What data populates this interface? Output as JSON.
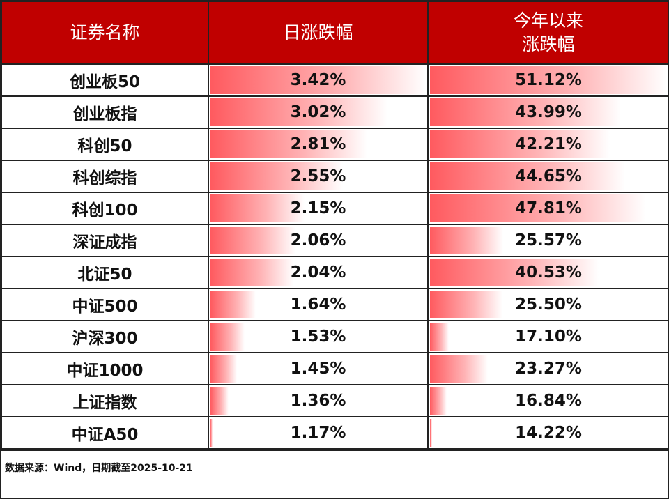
{
  "header": {
    "col_name": "证券名称",
    "col_daily": "日涨跌幅",
    "col_ytd_line1": "今年以来",
    "col_ytd_line2": "涨跌幅"
  },
  "colors": {
    "header_bg": "#c00000",
    "header_text": "#ffffff",
    "bar": "#ff5a5f",
    "border": "#222222"
  },
  "rows": [
    {
      "name": "创业板50",
      "daily": "3.42%",
      "ytd": "51.12%"
    },
    {
      "name": "创业板指",
      "daily": "3.02%",
      "ytd": "43.99%"
    },
    {
      "name": "科创50",
      "daily": "2.81%",
      "ytd": "42.21%"
    },
    {
      "name": "科创综指",
      "daily": "2.55%",
      "ytd": "44.65%"
    },
    {
      "name": "科创100",
      "daily": "2.15%",
      "ytd": "47.81%"
    },
    {
      "name": "深证成指",
      "daily": "2.06%",
      "ytd": "25.57%"
    },
    {
      "name": "北证50",
      "daily": "2.04%",
      "ytd": "40.53%"
    },
    {
      "name": "中证500",
      "daily": "1.64%",
      "ytd": "25.50%"
    },
    {
      "name": "沪深300",
      "daily": "1.53%",
      "ytd": "17.10%"
    },
    {
      "name": "中证1000",
      "daily": "1.45%",
      "ytd": "23.27%"
    },
    {
      "name": "上证指数",
      "daily": "1.36%",
      "ytd": "16.84%"
    },
    {
      "name": "中证A50",
      "daily": "1.17%",
      "ytd": "14.22%"
    }
  ],
  "footer": {
    "source": "数据来源：Wind，日期截至2025-10-21"
  },
  "chart_data": {
    "type": "table",
    "title": "",
    "columns": [
      "证券名称",
      "日涨跌幅",
      "今年以来涨跌幅"
    ],
    "categories": [
      "创业板50",
      "创业板指",
      "科创50",
      "科创综指",
      "科创100",
      "深证成指",
      "北证50",
      "中证500",
      "沪深300",
      "中证1000",
      "上证指数",
      "中证A50"
    ],
    "series": [
      {
        "name": "日涨跌幅",
        "unit": "%",
        "values": [
          3.42,
          3.02,
          2.81,
          2.55,
          2.15,
          2.06,
          2.04,
          1.64,
          1.53,
          1.45,
          1.36,
          1.17
        ]
      },
      {
        "name": "今年以来涨跌幅",
        "unit": "%",
        "values": [
          51.12,
          43.99,
          42.21,
          44.65,
          47.81,
          25.57,
          40.53,
          25.5,
          17.1,
          23.27,
          16.84,
          14.22
        ]
      }
    ],
    "annotations": [
      "数据来源：Wind，日期截至2025-10-21"
    ],
    "data_bars": true
  }
}
